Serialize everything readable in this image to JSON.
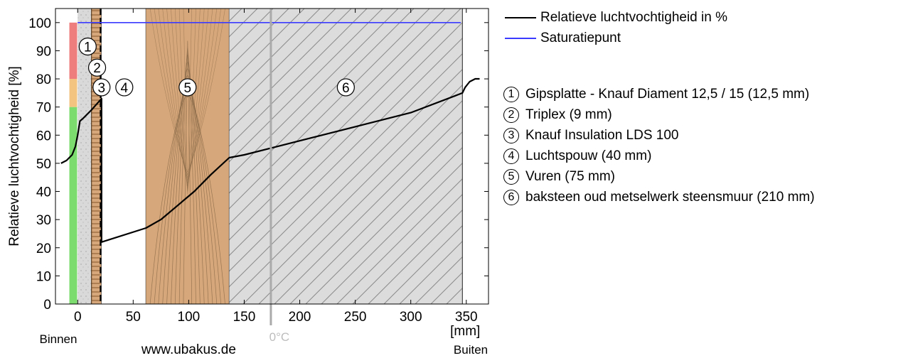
{
  "chart_data": {
    "type": "line",
    "ylabel": "Relatieve luchtvochtigheid [%]",
    "xunit": "[mm]",
    "inside_label": "Binnen",
    "outside_label": "Buiten",
    "watermark": "www.ubakus.de",
    "zero_marker": "0°C",
    "xlim": [
      -20,
      370
    ],
    "ylim": [
      0,
      105
    ],
    "xticks": [
      0,
      50,
      100,
      150,
      200,
      250,
      300,
      350
    ],
    "yticks": [
      0,
      10,
      20,
      30,
      40,
      50,
      60,
      70,
      80,
      90,
      100
    ],
    "series": [
      {
        "name": "Relatieve luchtvochtigheid in %",
        "color": "#000000",
        "points": [
          [
            -15,
            50
          ],
          [
            -10,
            51
          ],
          [
            -5,
            53
          ],
          [
            -2,
            56
          ],
          [
            0,
            60
          ],
          [
            2,
            65
          ],
          [
            5,
            66
          ],
          [
            12.5,
            69
          ],
          [
            17,
            71
          ],
          [
            21.5,
            73
          ],
          [
            21.5,
            22
          ],
          [
            61.5,
            27
          ],
          [
            75,
            30
          ],
          [
            90,
            35
          ],
          [
            105,
            40
          ],
          [
            120,
            46
          ],
          [
            136.5,
            52
          ],
          [
            150,
            53
          ],
          [
            200,
            58
          ],
          [
            250,
            63
          ],
          [
            300,
            68
          ],
          [
            340,
            74
          ],
          [
            346.5,
            75
          ],
          [
            349,
            77
          ],
          [
            353,
            79
          ],
          [
            358,
            80
          ],
          [
            362,
            80
          ]
        ]
      },
      {
        "name": "Saturatiepunt",
        "color": "#3b3bff",
        "points": [
          [
            0,
            100
          ],
          [
            345,
            100
          ]
        ]
      }
    ],
    "layers": [
      {
        "id": "1",
        "name": "Gipsplatte - Knauf Diament 12,5 / 15 (12,5 mm)",
        "from": 0,
        "to": 12.5,
        "fill": "#d9d9d9",
        "pattern": "dots"
      },
      {
        "id": "2",
        "name": "Triplex (9 mm)",
        "from": 12.5,
        "to": 21.5,
        "fill": "#d6a77a",
        "pattern": "grain"
      },
      {
        "id": "3",
        "name": "Knauf Insulation LDS 100",
        "from": 21.5,
        "to": 21.5,
        "fill": "#000000",
        "pattern": "foil"
      },
      {
        "id": "4",
        "name": "Luchtspouw (40 mm)",
        "from": 21.5,
        "to": 61.5,
        "fill": "#ffffff",
        "pattern": "none"
      },
      {
        "id": "5",
        "name": "Vuren (75 mm)",
        "from": 61.5,
        "to": 136.5,
        "fill": "#d6a77a",
        "pattern": "wood"
      },
      {
        "id": "6",
        "name": "baksteen oud metselwerk steensmuur (210 mm)",
        "from": 136.5,
        "to": 346.5,
        "fill": "#dcdcdc",
        "pattern": "hatch"
      }
    ],
    "humidity_bands": [
      {
        "from": 0,
        "to": 70,
        "color": "#7ddc6e"
      },
      {
        "from": 70,
        "to": 80,
        "color": "#f2c47f"
      },
      {
        "from": 80,
        "to": 100,
        "color": "#ee7d7d"
      }
    ],
    "grid": false
  }
}
